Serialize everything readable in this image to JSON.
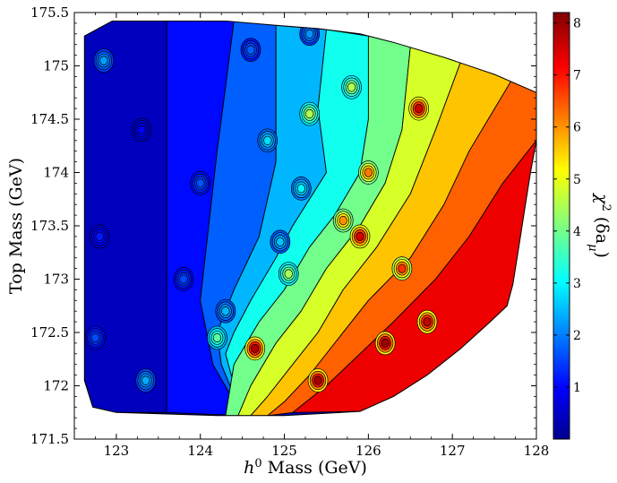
{
  "chart_data": {
    "type": "heatmap",
    "subtype": "filled-contour",
    "title": "",
    "xlabel": {
      "base": "h",
      "sup": "0",
      "rest": " Mass (GeV)"
    },
    "ylabel": "Top Mass (GeV)",
    "colorbar_label": {
      "base": "χ",
      "sup": "2",
      "open": " (δa",
      "sub": "μ",
      "close": ")"
    },
    "xlim": [
      122.5,
      128
    ],
    "ylim": [
      171.5,
      175.5
    ],
    "x_ticks": [
      123,
      124,
      125,
      126,
      127,
      128
    ],
    "x_tick_labels": [
      "123",
      "124",
      "125",
      "126",
      "127",
      "128"
    ],
    "y_ticks": [
      171.5,
      172,
      172.5,
      173,
      173.5,
      174,
      174.5,
      175,
      175.5
    ],
    "y_tick_labels": [
      "171.5",
      "172",
      "172.5",
      "173",
      "173.5",
      "174",
      "174.5",
      "175",
      "175.5"
    ],
    "colorbar_range": [
      0,
      8.2
    ],
    "colorbar_ticks": [
      1,
      2,
      3,
      4,
      5,
      6,
      7,
      8
    ],
    "colorbar_tick_labels": [
      "1",
      "2",
      "3",
      "4",
      "5",
      "6",
      "7",
      "8"
    ],
    "colormap": "jet",
    "contour_line_color": "#000000",
    "region_outline": [
      [
        122.62,
        175.28
      ],
      [
        122.95,
        175.42
      ],
      [
        124.3,
        175.42
      ],
      [
        124.9,
        175.38
      ],
      [
        125.4,
        175.35
      ],
      [
        125.9,
        175.3
      ],
      [
        126.3,
        175.22
      ],
      [
        126.9,
        175.08
      ],
      [
        127.5,
        174.92
      ],
      [
        128.0,
        174.75
      ],
      [
        128.0,
        174.3
      ],
      [
        127.93,
        174.0
      ],
      [
        127.85,
        173.6
      ],
      [
        127.78,
        173.25
      ],
      [
        127.72,
        172.95
      ],
      [
        127.65,
        172.75
      ],
      [
        127.45,
        172.6
      ],
      [
        127.1,
        172.35
      ],
      [
        126.7,
        172.1
      ],
      [
        126.3,
        171.9
      ],
      [
        125.9,
        171.76
      ],
      [
        125.0,
        171.72
      ],
      [
        124.2,
        171.72
      ],
      [
        123.0,
        171.75
      ],
      [
        122.72,
        171.8
      ],
      [
        122.62,
        172.05
      ]
    ],
    "levels": [
      {
        "value": 0.5,
        "polygon": [
          [
            122.62,
            175.28
          ],
          [
            122.95,
            175.42
          ],
          [
            123.6,
            175.42
          ],
          [
            123.6,
            171.75
          ],
          [
            123.0,
            171.75
          ],
          [
            122.72,
            171.8
          ],
          [
            122.62,
            172.05
          ]
        ]
      },
      {
        "value": 1.1,
        "polygon": [
          [
            123.6,
            175.42
          ],
          [
            124.4,
            175.42
          ],
          [
            124.3,
            174.8
          ],
          [
            124.2,
            174.2
          ],
          [
            124.1,
            173.5
          ],
          [
            124.0,
            172.8
          ],
          [
            124.15,
            172.2
          ],
          [
            124.5,
            171.72
          ],
          [
            123.6,
            171.75
          ]
        ]
      },
      {
        "value": 1.8,
        "polygon": [
          [
            124.4,
            175.42
          ],
          [
            124.9,
            175.38
          ],
          [
            124.9,
            174.7
          ],
          [
            124.9,
            174.1
          ],
          [
            124.7,
            173.4
          ],
          [
            124.4,
            172.9
          ],
          [
            124.2,
            172.5
          ],
          [
            124.25,
            172.2
          ],
          [
            124.5,
            171.72
          ],
          [
            124.15,
            172.2
          ],
          [
            124.0,
            172.8
          ],
          [
            124.1,
            173.5
          ],
          [
            124.2,
            174.2
          ],
          [
            124.3,
            174.8
          ]
        ]
      },
      {
        "value": 2.5,
        "polygon": [
          [
            124.9,
            175.38
          ],
          [
            125.5,
            175.34
          ],
          [
            125.4,
            174.6
          ],
          [
            125.5,
            174.0
          ],
          [
            125.1,
            173.5
          ],
          [
            124.9,
            173.2
          ],
          [
            124.6,
            172.8
          ],
          [
            124.4,
            172.5
          ],
          [
            124.3,
            172.3
          ],
          [
            124.5,
            171.72
          ],
          [
            124.25,
            172.2
          ],
          [
            124.2,
            172.5
          ],
          [
            124.4,
            172.9
          ],
          [
            124.7,
            173.4
          ],
          [
            124.9,
            174.1
          ],
          [
            124.9,
            174.7
          ]
        ]
      },
      {
        "value": 3.2,
        "polygon": [
          [
            125.5,
            175.34
          ],
          [
            126.0,
            175.28
          ],
          [
            126.0,
            174.5
          ],
          [
            125.9,
            174.0
          ],
          [
            125.6,
            173.6
          ],
          [
            125.3,
            173.3
          ],
          [
            125.0,
            172.9
          ],
          [
            124.7,
            172.6
          ],
          [
            124.4,
            172.2
          ],
          [
            124.3,
            171.72
          ],
          [
            124.5,
            171.72
          ],
          [
            124.3,
            172.3
          ],
          [
            124.4,
            172.5
          ],
          [
            124.6,
            172.8
          ],
          [
            124.9,
            173.2
          ],
          [
            125.1,
            173.5
          ],
          [
            125.5,
            174.0
          ],
          [
            125.4,
            174.6
          ]
        ]
      },
      {
        "value": 4.0,
        "polygon": [
          [
            126.0,
            175.28
          ],
          [
            126.5,
            175.18
          ],
          [
            126.4,
            174.4
          ],
          [
            126.2,
            173.9
          ],
          [
            125.9,
            173.5
          ],
          [
            125.5,
            173.1
          ],
          [
            125.2,
            172.7
          ],
          [
            124.9,
            172.4
          ],
          [
            124.6,
            172.0
          ],
          [
            124.45,
            171.72
          ],
          [
            124.3,
            171.72
          ],
          [
            124.4,
            172.2
          ],
          [
            124.7,
            172.6
          ],
          [
            125.0,
            172.9
          ],
          [
            125.3,
            173.3
          ],
          [
            125.6,
            173.6
          ],
          [
            125.9,
            174.0
          ],
          [
            126.0,
            174.5
          ]
        ]
      },
      {
        "value": 4.8,
        "polygon": [
          [
            126.5,
            175.18
          ],
          [
            127.1,
            175.04
          ],
          [
            126.8,
            174.4
          ],
          [
            126.5,
            173.8
          ],
          [
            126.1,
            173.3
          ],
          [
            125.7,
            172.9
          ],
          [
            125.4,
            172.5
          ],
          [
            125.1,
            172.2
          ],
          [
            124.8,
            171.9
          ],
          [
            124.6,
            171.72
          ],
          [
            124.45,
            171.72
          ],
          [
            124.6,
            172.0
          ],
          [
            124.9,
            172.4
          ],
          [
            125.2,
            172.7
          ],
          [
            125.5,
            173.1
          ],
          [
            125.9,
            173.5
          ],
          [
            126.2,
            173.9
          ],
          [
            126.4,
            174.4
          ]
        ]
      },
      {
        "value": 5.6,
        "polygon": [
          [
            127.1,
            175.04
          ],
          [
            127.7,
            174.86
          ],
          [
            127.2,
            174.2
          ],
          [
            126.9,
            173.7
          ],
          [
            126.5,
            173.2
          ],
          [
            126.0,
            172.8
          ],
          [
            125.6,
            172.4
          ],
          [
            125.3,
            172.1
          ],
          [
            125.0,
            171.85
          ],
          [
            124.8,
            171.72
          ],
          [
            124.6,
            171.72
          ],
          [
            124.8,
            171.9
          ],
          [
            125.1,
            172.2
          ],
          [
            125.4,
            172.5
          ],
          [
            125.7,
            172.9
          ],
          [
            126.1,
            173.3
          ],
          [
            126.5,
            173.8
          ],
          [
            126.8,
            174.4
          ]
        ]
      },
      {
        "value": 6.4,
        "polygon": [
          [
            127.7,
            174.86
          ],
          [
            128.0,
            174.75
          ],
          [
            128.0,
            174.3
          ],
          [
            127.6,
            173.9
          ],
          [
            127.2,
            173.4
          ],
          [
            126.8,
            173.0
          ],
          [
            126.3,
            172.6
          ],
          [
            125.9,
            172.3
          ],
          [
            125.5,
            172.0
          ],
          [
            125.1,
            171.75
          ],
          [
            124.8,
            171.72
          ],
          [
            125.0,
            171.85
          ],
          [
            125.3,
            172.1
          ],
          [
            125.6,
            172.4
          ],
          [
            126.0,
            172.8
          ],
          [
            126.5,
            173.2
          ],
          [
            126.9,
            173.7
          ],
          [
            127.2,
            174.2
          ]
        ]
      },
      {
        "value": 7.3,
        "polygon": [
          [
            128.0,
            174.3
          ],
          [
            127.93,
            174.0
          ],
          [
            127.85,
            173.6
          ],
          [
            127.78,
            173.25
          ],
          [
            127.72,
            172.95
          ],
          [
            127.65,
            172.75
          ],
          [
            127.45,
            172.6
          ],
          [
            127.1,
            172.35
          ],
          [
            126.7,
            172.1
          ],
          [
            126.3,
            171.9
          ],
          [
            125.9,
            171.76
          ],
          [
            125.1,
            171.75
          ],
          [
            125.5,
            172.0
          ],
          [
            125.9,
            172.3
          ],
          [
            126.3,
            172.6
          ],
          [
            126.8,
            173.0
          ],
          [
            127.2,
            173.4
          ],
          [
            127.6,
            173.9
          ]
        ]
      }
    ],
    "hotspots": [
      {
        "x": 124.65,
        "y": 172.35,
        "value": 7.8
      },
      {
        "x": 125.4,
        "y": 172.05,
        "value": 7.9
      },
      {
        "x": 126.7,
        "y": 172.6,
        "value": 7.7
      },
      {
        "x": 126.2,
        "y": 172.4,
        "value": 8.0
      },
      {
        "x": 126.6,
        "y": 174.6,
        "value": 7.6
      },
      {
        "x": 125.9,
        "y": 173.4,
        "value": 7.5
      },
      {
        "x": 126.0,
        "y": 174.0,
        "value": 6.2
      },
      {
        "x": 125.7,
        "y": 173.55,
        "value": 6.0
      },
      {
        "x": 124.2,
        "y": 172.45,
        "value": 3.8
      },
      {
        "x": 125.05,
        "y": 173.05,
        "value": 4.4
      },
      {
        "x": 125.2,
        "y": 173.85,
        "value": 3.0
      },
      {
        "x": 125.3,
        "y": 174.55,
        "value": 4.5
      },
      {
        "x": 124.8,
        "y": 174.3,
        "value": 2.8
      },
      {
        "x": 124.95,
        "y": 173.35,
        "value": 2.6
      },
      {
        "x": 125.3,
        "y": 175.3,
        "value": 2.2
      },
      {
        "x": 124.6,
        "y": 175.15,
        "value": 1.8
      },
      {
        "x": 124.0,
        "y": 173.9,
        "value": 1.7
      },
      {
        "x": 123.8,
        "y": 173.0,
        "value": 1.6
      },
      {
        "x": 123.35,
        "y": 172.05,
        "value": 2.4
      },
      {
        "x": 124.3,
        "y": 172.7,
        "value": 2.5
      },
      {
        "x": 122.85,
        "y": 175.05,
        "value": 2.3
      },
      {
        "x": 122.75,
        "y": 172.45,
        "value": 1.6
      },
      {
        "x": 123.3,
        "y": 174.4,
        "value": 1.0
      },
      {
        "x": 122.8,
        "y": 173.4,
        "value": 1.2
      },
      {
        "x": 125.8,
        "y": 174.8,
        "value": 4.5
      },
      {
        "x": 126.4,
        "y": 173.1,
        "value": 6.8
      }
    ]
  }
}
